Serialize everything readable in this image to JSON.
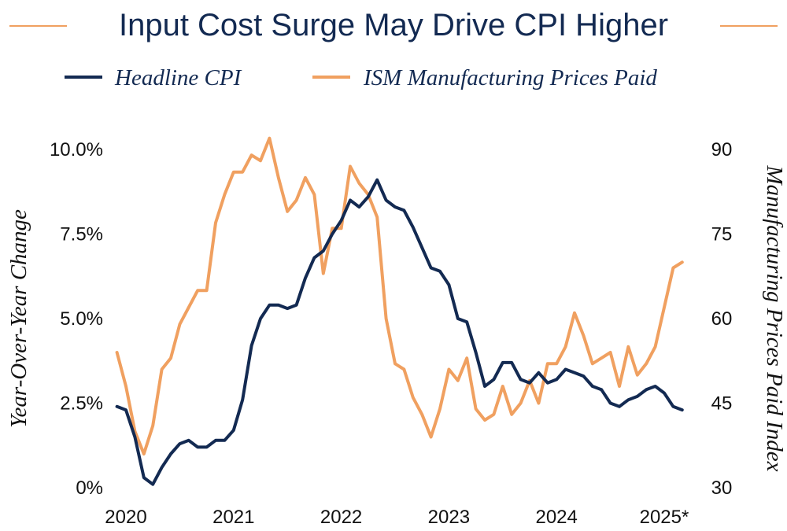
{
  "chart_data": {
    "type": "line",
    "title": "Input Cost Surge May Drive CPI Higher",
    "colors": {
      "cpi": "#132a52",
      "ism": "#f0a060",
      "title": "#132a52"
    },
    "x_ticks": [
      {
        "value": 2020,
        "label": "2020"
      },
      {
        "value": 2021,
        "label": "2021"
      },
      {
        "value": 2022,
        "label": "2022"
      },
      {
        "value": 2023,
        "label": "2023"
      },
      {
        "value": 2024,
        "label": "2024"
      },
      {
        "value": 2025,
        "label": "2025*"
      }
    ],
    "xlim": [
      2020,
      2025.3
    ],
    "y_left": {
      "label": "Year-Over-Year Change",
      "lim": [
        0,
        10
      ],
      "ticks": [
        {
          "value": 0,
          "label": "0%"
        },
        {
          "value": 2.5,
          "label": "2.5%"
        },
        {
          "value": 5,
          "label": "5.0%"
        },
        {
          "value": 7.5,
          "label": "7.5%"
        },
        {
          "value": 10,
          "label": "10.0%"
        }
      ]
    },
    "y_right": {
      "label": "Manufacturing Prices Paid Index",
      "lim": [
        30,
        90
      ],
      "ticks": [
        {
          "value": 30,
          "label": "30"
        },
        {
          "value": 45,
          "label": "45"
        },
        {
          "value": 60,
          "label": "60"
        },
        {
          "value": 75,
          "label": "75"
        },
        {
          "value": 90,
          "label": "90"
        }
      ]
    },
    "series": [
      {
        "name": "Headline CPI",
        "axis": "left",
        "color": "#132a52",
        "x_start": 2019.917,
        "x_step": 0.08333,
        "values": [
          2.4,
          2.3,
          1.5,
          0.3,
          0.1,
          0.6,
          1.0,
          1.3,
          1.4,
          1.2,
          1.2,
          1.4,
          1.4,
          1.7,
          2.6,
          4.2,
          5.0,
          5.4,
          5.4,
          5.3,
          5.4,
          6.2,
          6.8,
          7.0,
          7.5,
          7.9,
          8.5,
          8.3,
          8.6,
          9.1,
          8.5,
          8.3,
          8.2,
          7.7,
          7.1,
          6.5,
          6.4,
          6.0,
          5.0,
          4.9,
          4.0,
          3.0,
          3.2,
          3.7,
          3.7,
          3.2,
          3.1,
          3.4,
          3.1,
          3.2,
          3.5,
          3.4,
          3.3,
          3.0,
          2.9,
          2.5,
          2.4,
          2.6,
          2.7,
          2.9,
          3.0,
          2.8,
          2.4,
          2.3
        ]
      },
      {
        "name": "ISM Manufacturing Prices Paid",
        "axis": "right",
        "color": "#f0a060",
        "x_start": 2019.917,
        "x_step": 0.08333,
        "values": [
          54,
          48,
          40,
          36,
          41,
          51,
          53,
          59,
          62,
          65,
          65,
          77,
          82,
          86,
          86,
          89,
          88,
          92,
          85,
          79,
          81,
          85,
          82,
          68,
          76,
          76,
          87,
          84,
          82,
          78,
          60,
          52,
          51,
          46,
          43,
          39,
          44,
          51,
          49,
          53,
          44,
          42,
          43,
          48,
          43,
          45,
          49,
          45,
          52,
          52,
          55,
          61,
          57,
          52,
          53,
          54,
          48,
          55,
          50,
          52,
          55,
          62,
          69,
          70
        ]
      }
    ]
  }
}
